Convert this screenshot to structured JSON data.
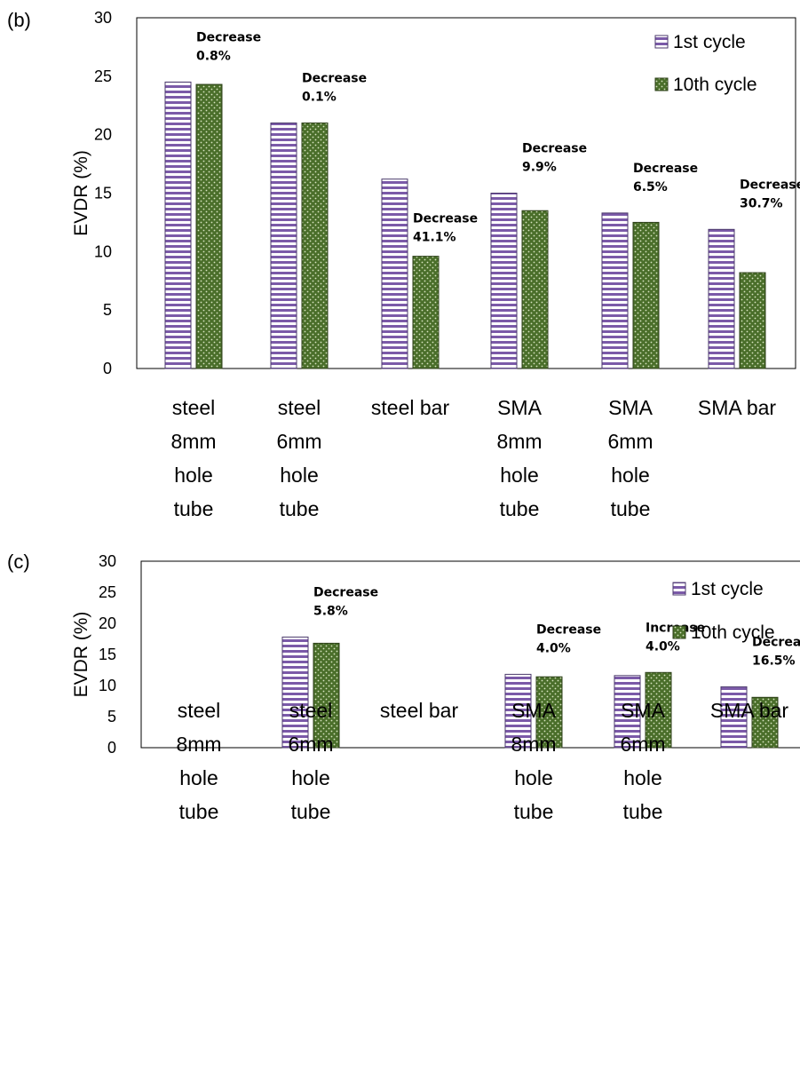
{
  "chart_data": [
    {
      "panel_label": "(b)",
      "type": "bar",
      "ylabel": "EVDR (%)",
      "ylim": [
        0,
        30
      ],
      "yticks": [
        "0",
        "5",
        "10",
        "15",
        "20",
        "25",
        "30"
      ],
      "categories": [
        [
          "steel",
          "8mm",
          "hole",
          "tube"
        ],
        [
          "steel",
          "6mm",
          "hole",
          "tube"
        ],
        [
          "steel bar"
        ],
        [
          "SMA",
          "8mm",
          "hole",
          "tube"
        ],
        [
          "SMA",
          "6mm",
          "hole",
          "tube"
        ],
        [
          "SMA bar"
        ]
      ],
      "series": [
        {
          "name": "1st cycle",
          "values": [
            24.5,
            21.0,
            16.2,
            15.0,
            13.3,
            11.9
          ]
        },
        {
          "name": "10th cycle",
          "values": [
            24.3,
            21.0,
            9.6,
            13.5,
            12.5,
            8.2
          ]
        }
      ],
      "annotations": [
        {
          "line1": "Decrease",
          "line2": "0.8%"
        },
        {
          "line1": "Decrease",
          "line2": "0.1%"
        },
        {
          "line1": "Decrease",
          "line2": "41.1%"
        },
        {
          "line1": "Decrease",
          "line2": "9.9%"
        },
        {
          "line1": "Decrease",
          "line2": "6.5%"
        },
        {
          "line1": "Decrease",
          "line2": "30.7%"
        }
      ],
      "legend_position": "top-right",
      "grid": false,
      "colors": {
        "first": "#7b5aa8",
        "tenth": "#4a6e2a"
      }
    },
    {
      "panel_label": "(c)",
      "type": "bar",
      "ylabel": "EVDR (%)",
      "ylim": [
        0,
        30
      ],
      "yticks": [
        "0",
        "5",
        "10",
        "15",
        "20",
        "25",
        "30"
      ],
      "categories": [
        [
          "steel",
          "8mm",
          "hole",
          "tube"
        ],
        [
          "steel",
          "6mm",
          "hole",
          "tube"
        ],
        [
          "steel bar"
        ],
        [
          "SMA",
          "8mm",
          "hole",
          "tube"
        ],
        [
          "SMA",
          "6mm",
          "hole",
          "tube"
        ],
        [
          "SMA bar"
        ]
      ],
      "series": [
        {
          "name": "1st cycle",
          "values": [
            null,
            17.8,
            null,
            11.8,
            11.6,
            9.8
          ]
        },
        {
          "name": "10th cycle",
          "values": [
            null,
            16.8,
            null,
            11.4,
            12.1,
            8.1
          ]
        }
      ],
      "annotations": [
        null,
        {
          "line1": "Decrease",
          "line2": "5.8%"
        },
        null,
        {
          "line1": "Decrease",
          "line2": "4.0%"
        },
        {
          "line1": "Increase",
          "line2": "4.0%"
        },
        {
          "line1": "Decrease",
          "line2": "16.5%"
        }
      ],
      "legend_position": "top-right",
      "grid": false,
      "colors": {
        "first": "#7b5aa8",
        "tenth": "#4a6e2a"
      }
    }
  ]
}
